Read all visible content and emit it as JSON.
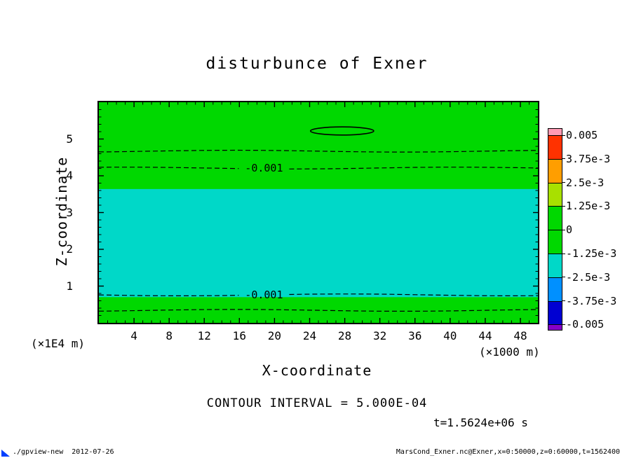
{
  "title": "disturbunce of Exner",
  "x_axis": {
    "label": "X-coordinate",
    "unit": "(×1000 m)",
    "ticks": [
      "4",
      "8",
      "12",
      "16",
      "20",
      "24",
      "28",
      "32",
      "36",
      "40",
      "44",
      "48"
    ]
  },
  "y_axis": {
    "label": "Z-coordinate",
    "unit": "(×1E4 m)",
    "ticks": [
      "1",
      "2",
      "3",
      "4",
      "5"
    ]
  },
  "colorbar": {
    "labels": [
      "0.005",
      "3.75e-3",
      "2.5e-3",
      "1.25e-3",
      "0",
      "-1.25e-3",
      "-2.5e-3",
      "-3.75e-3",
      "-0.005"
    ],
    "colors": [
      "#ff9ab4",
      "#ff3200",
      "#ff9e00",
      "#a8e000",
      "#00d800",
      "#00d800",
      "#00d8c8",
      "#0090ff",
      "#0000d2",
      "#8400c8"
    ]
  },
  "annotations": {
    "contour_interval": "CONTOUR INTERVAL = 5.000E-04",
    "time": "t=1.5624e+06 s"
  },
  "footer": {
    "left": "./gpview-new  2012-07-26",
    "right": "MarsCond_Exner.nc@Exner,x=0:50000,z=0:60000,t=1562400"
  },
  "chart_data": {
    "type": "heatmap",
    "title": "disturbunce of Exner",
    "xlabel": "X-coordinate",
    "ylabel": "Z-coordinate",
    "x_unit": "×1000 m",
    "y_unit": "×1E4 m",
    "xlim": [
      0,
      50
    ],
    "ylim": [
      0,
      6
    ],
    "x_major_ticks": [
      4,
      8,
      12,
      16,
      20,
      24,
      28,
      32,
      36,
      40,
      44,
      48
    ],
    "y_major_ticks": [
      1,
      2,
      3,
      4,
      5
    ],
    "grid": false,
    "legend_position": "right colorbar",
    "contour_interval": 0.0005,
    "fill_levels": [
      -0.005,
      -0.00375,
      -0.0025,
      -0.00125,
      0,
      0.00125,
      0.0025,
      0.00375,
      0.005
    ],
    "background_fill_color": "#00d800",
    "band_fill_color": "#00d8c8",
    "regions": [
      {
        "color": "#00d800",
        "value_range": [
          -0.00125,
          0
        ],
        "z_range": [
          0,
          6
        ],
        "note": "full-width background fill"
      },
      {
        "color": "#00d8c8",
        "value_range": [
          -0.0025,
          -0.00125
        ],
        "z_range": [
          0.7,
          3.64
        ],
        "note": "full-width horizontal band"
      }
    ],
    "contours": [
      {
        "value": -0.0005,
        "z": 4.67,
        "style": "dashed"
      },
      {
        "value": -0.001,
        "z": 4.21,
        "style": "dashed",
        "label": "-0.001",
        "label_x": 18.8
      },
      {
        "value": -0.001,
        "z": 0.76,
        "style": "dashed",
        "label": "-0.001",
        "label_x": 18.8
      },
      {
        "value": -0.0005,
        "z": 0.34,
        "style": "dashed"
      },
      {
        "value": 0,
        "style": "solid",
        "shape": "ellipse",
        "x_center": 27.7,
        "z_center": 5.22,
        "x_halfwidth": 3.6,
        "z_halfheight": 0.11
      }
    ],
    "time_label": "t=1.5624e+06 s"
  }
}
